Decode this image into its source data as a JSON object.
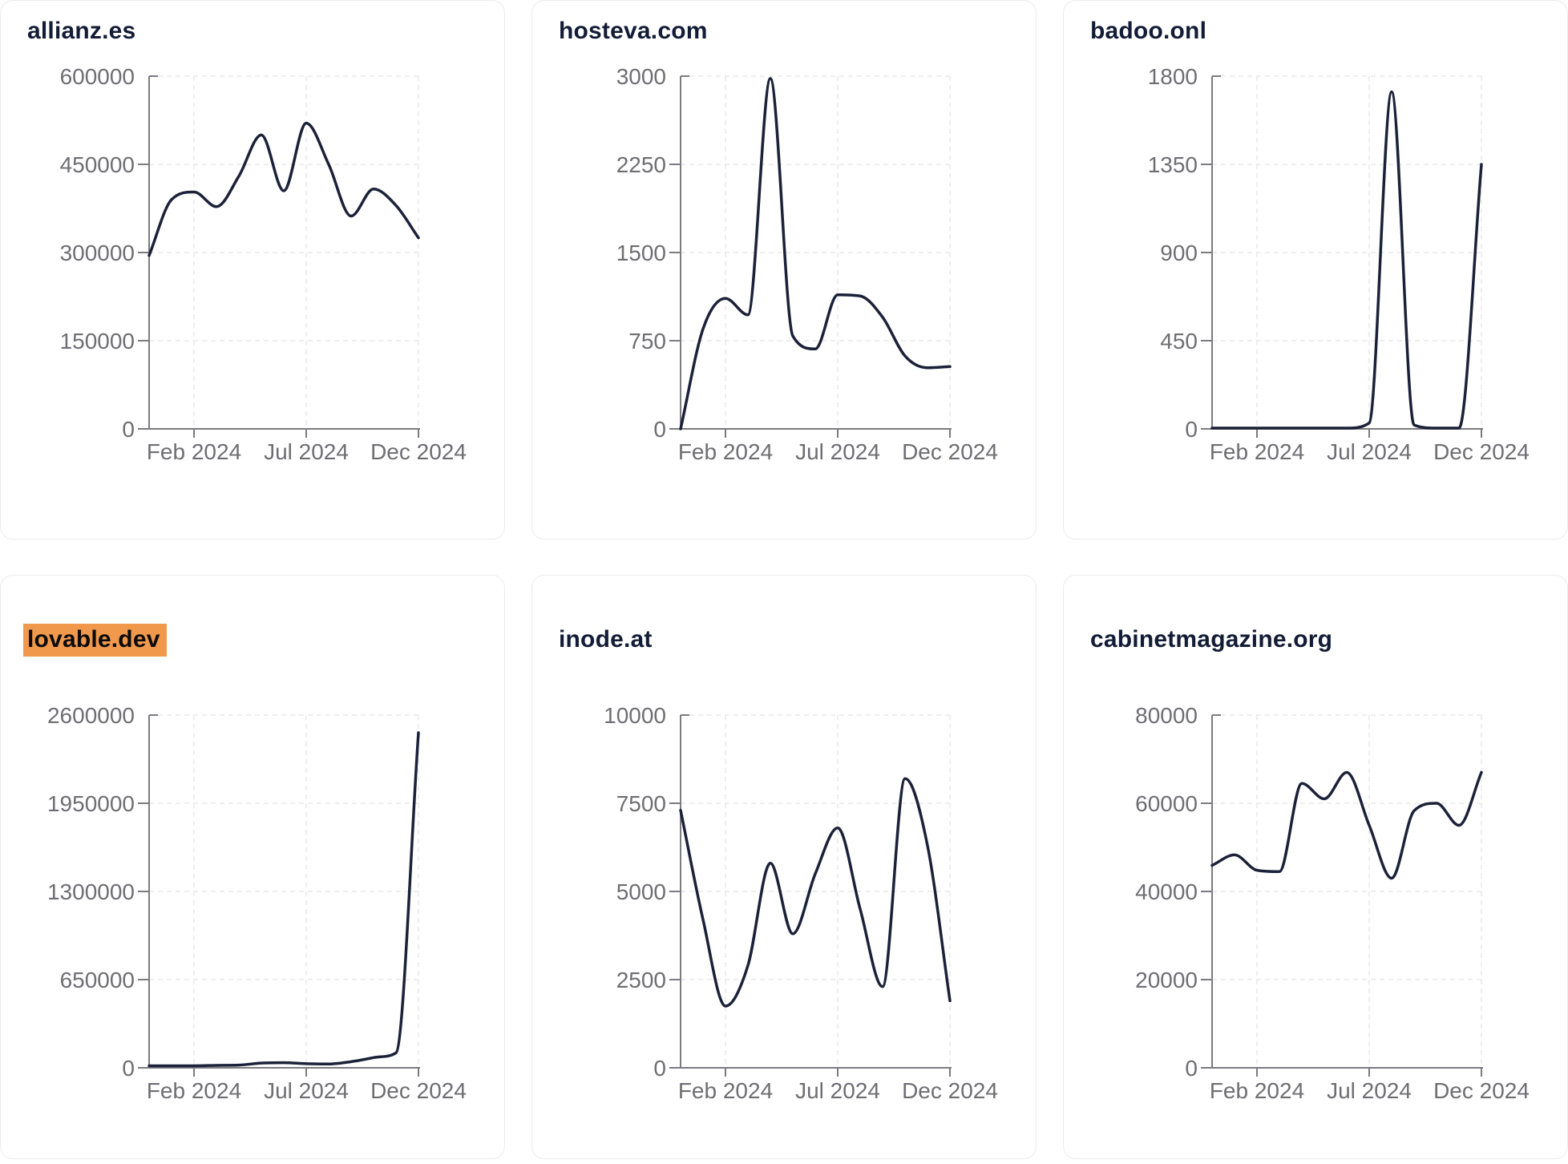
{
  "colors": {
    "line": "#1b2138",
    "axis": "#7b7b80",
    "tick_text": "#6e6e73",
    "grid": "#e8e8ec",
    "title": "#131c36",
    "highlight_bg": "#f0994d",
    "highlight_text": "#0b0b0c",
    "card_border": "#ececf0"
  },
  "chart_data": [
    {
      "type": "line",
      "title": "allianz.es",
      "title_highlighted": false,
      "x": [
        "Jan 2024",
        "Feb 2024",
        "Mar 2024",
        "Apr 2024",
        "May 2024",
        "Jun 2024",
        "Jul 2024",
        "Aug 2024",
        "Sep 2024",
        "Oct 2024",
        "Nov 2024",
        "Dec 2024",
        "Dec 31 2024"
      ],
      "values": [
        295000,
        390000,
        403000,
        378000,
        430000,
        500000,
        405000,
        520000,
        450000,
        362000,
        408000,
        380000,
        325000
      ],
      "ylim": [
        0,
        600000
      ],
      "y_ticks": [
        0,
        150000,
        300000,
        450000,
        600000
      ],
      "x_tick_labels": [
        "Feb 2024",
        "Jul 2024",
        "Dec 2024"
      ],
      "grid": "dashed",
      "legend": "none"
    },
    {
      "type": "line",
      "title": "hosteva.com",
      "title_highlighted": false,
      "x": [
        "Jan 2024",
        "Feb 2024",
        "Mar 2024",
        "Apr 2024",
        "May 2024",
        "Jun 2024",
        "Jul 2024",
        "Aug 2024",
        "Sep 2024",
        "Oct 2024",
        "Nov 2024",
        "Dec 2024",
        "Dec 31 2024"
      ],
      "values": [
        0,
        850,
        1110,
        970,
        2980,
        790,
        680,
        1140,
        1130,
        950,
        620,
        520,
        530
      ],
      "ylim": [
        0,
        3000
      ],
      "y_ticks": [
        0,
        750,
        1500,
        2250,
        3000
      ],
      "x_tick_labels": [
        "Feb 2024",
        "Jul 2024",
        "Dec 2024"
      ],
      "grid": "dashed",
      "legend": "none"
    },
    {
      "type": "line",
      "title": "badoo.onl",
      "title_highlighted": false,
      "x": [
        "Jan 2024",
        "Feb 2024",
        "Mar 2024",
        "Apr 2024",
        "May 2024",
        "Jun 2024",
        "Jul 2024",
        "Aug 2024",
        "Sep 2024",
        "Oct 2024",
        "Nov 2024",
        "Dec 2024",
        "Dec 31 2024"
      ],
      "values": [
        4,
        4,
        4,
        4,
        4,
        4,
        4,
        30,
        1720,
        20,
        4,
        4,
        1350
      ],
      "ylim": [
        0,
        1800
      ],
      "y_ticks": [
        0,
        450,
        900,
        1350,
        1800
      ],
      "x_tick_labels": [
        "Feb 2024",
        "Jul 2024",
        "Dec 2024"
      ],
      "grid": "dashed",
      "legend": "none"
    },
    {
      "type": "line",
      "title": "lovable.dev",
      "title_highlighted": true,
      "x": [
        "Jan 2024",
        "Feb 2024",
        "Mar 2024",
        "Apr 2024",
        "May 2024",
        "Jun 2024",
        "Jul 2024",
        "Aug 2024",
        "Sep 2024",
        "Oct 2024",
        "Nov 2024",
        "Dec 2024",
        "Dec 31 2024"
      ],
      "values": [
        15000,
        15000,
        15000,
        18000,
        20000,
        35000,
        38000,
        30000,
        28000,
        45000,
        75000,
        110000,
        2470000
      ],
      "ylim": [
        0,
        2600000
      ],
      "y_ticks": [
        0,
        650000,
        1300000,
        1950000,
        2600000
      ],
      "x_tick_labels": [
        "Feb 2024",
        "Jul 2024",
        "Dec 2024"
      ],
      "grid": "dashed",
      "legend": "none"
    },
    {
      "type": "line",
      "title": "inode.at",
      "title_highlighted": false,
      "x": [
        "Jan 2024",
        "Feb 2024",
        "Mar 2024",
        "Apr 2024",
        "May 2024",
        "Jun 2024",
        "Jul 2024",
        "Aug 2024",
        "Sep 2024",
        "Oct 2024",
        "Nov 2024",
        "Dec 2024",
        "Dec 31 2024"
      ],
      "values": [
        7300,
        4200,
        1750,
        2900,
        5800,
        3800,
        5500,
        6800,
        4500,
        2300,
        8200,
        6300,
        1900
      ],
      "ylim": [
        0,
        10000
      ],
      "y_ticks": [
        0,
        2500,
        5000,
        7500,
        10000
      ],
      "x_tick_labels": [
        "Feb 2024",
        "Jul 2024",
        "Dec 2024"
      ],
      "grid": "dashed",
      "legend": "none"
    },
    {
      "type": "line",
      "title": "cabinetmagazine.org",
      "title_highlighted": false,
      "x": [
        "Jan 2024",
        "Feb 2024",
        "Mar 2024",
        "Apr 2024",
        "May 2024",
        "Jun 2024",
        "Jul 2024",
        "Aug 2024",
        "Sep 2024",
        "Oct 2024",
        "Nov 2024",
        "Dec 2024",
        "Dec 31 2024"
      ],
      "values": [
        45900,
        48300,
        44800,
        44500,
        64500,
        61000,
        67000,
        55000,
        43000,
        58300,
        60000,
        55000,
        67000
      ],
      "ylim": [
        0,
        80000
      ],
      "y_ticks": [
        0,
        20000,
        40000,
        60000,
        80000
      ],
      "x_tick_labels": [
        "Feb 2024",
        "Jul 2024",
        "Dec 2024"
      ],
      "grid": "dashed",
      "legend": "none"
    }
  ]
}
